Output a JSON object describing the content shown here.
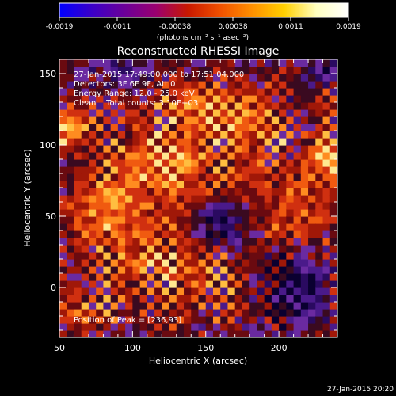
{
  "window": {
    "timestamp": "27-Jan-2015 20:20"
  },
  "colorbar": {
    "tick_labels": [
      "-0.0019",
      "-0.0011",
      "-0.00038",
      "0.00038",
      "0.0011",
      "0.0019"
    ],
    "units_label": "(photons cm⁻² s⁻¹ asec⁻²)",
    "min": -0.0019,
    "max": 0.0019,
    "stops": [
      "#0000ff",
      "#3a00c8",
      "#6a009a",
      "#9a0070",
      "#c81800",
      "#f05000",
      "#ff9000",
      "#ffd000",
      "#ffffc0",
      "#ffffff"
    ]
  },
  "annotations": {
    "line1": "27-Jan-2015 17:49:00.000 to 17:51:04.000",
    "line2": "Detectors: 3F 6F 9F, Att 0",
    "line3": "Energy Range: 12.0 - 25.0 keV",
    "line4": "Clean    Total counts: 3.10E+03",
    "peak": "Position of Peak = [236,93]"
  },
  "chart_data": {
    "type": "heatmap",
    "title": "Reconstructed RHESSI Image",
    "xlabel": "Heliocentric X (arcsec)",
    "ylabel": "Heliocentric Y (arcsec)",
    "xlim": [
      50,
      240
    ],
    "ylim": [
      -35,
      160
    ],
    "x_ticks": [
      50,
      100,
      150,
      200
    ],
    "y_ticks": [
      0,
      50,
      100,
      150
    ],
    "peak_position": [
      236,
      93
    ],
    "grid": false,
    "palette": [
      "#0a0030",
      "#2a0a60",
      "#4a1a8a",
      "#6a2aa0",
      "#3a0a20",
      "#6a0a10",
      "#a01808",
      "#d03010",
      "#f05a10",
      "#ff8c20",
      "#ffbe40",
      "#ffe890"
    ],
    "components": [
      {
        "x": 236,
        "y": 93,
        "amp": 1.0,
        "sx": 9,
        "sy": 12
      },
      {
        "x": 55,
        "y": 112,
        "amp": 0.85,
        "sx": 10,
        "sy": 10
      },
      {
        "x": 120,
        "y": 85,
        "amp": 0.75,
        "sx": 28,
        "sy": 18
      },
      {
        "x": 80,
        "y": 55,
        "amp": 0.55,
        "sx": 18,
        "sy": 16
      },
      {
        "x": 145,
        "y": 130,
        "amp": 0.5,
        "sx": 30,
        "sy": 14
      },
      {
        "x": 112,
        "y": 25,
        "amp": 0.5,
        "sx": 28,
        "sy": 20
      },
      {
        "x": 210,
        "y": 60,
        "amp": 0.45,
        "sx": 22,
        "sy": 22
      },
      {
        "x": 180,
        "y": 110,
        "amp": 0.45,
        "sx": 20,
        "sy": 18
      },
      {
        "x": 150,
        "y": 0,
        "amp": 0.4,
        "sx": 22,
        "sy": 14
      },
      {
        "x": 70,
        "y": -15,
        "amp": 0.4,
        "sx": 18,
        "sy": 12
      },
      {
        "x": 160,
        "y": 45,
        "amp": -0.6,
        "sx": 12,
        "sy": 11
      },
      {
        "x": 212,
        "y": 0,
        "amp": -0.75,
        "sx": 16,
        "sy": 14
      },
      {
        "x": 95,
        "y": 150,
        "amp": -0.35,
        "sx": 14,
        "sy": 8
      },
      {
        "x": 230,
        "y": 150,
        "amp": -0.4,
        "sx": 10,
        "sy": 10
      },
      {
        "x": 235,
        "y": 130,
        "amp": 0.4,
        "sx": 6,
        "sy": 8
      }
    ]
  }
}
